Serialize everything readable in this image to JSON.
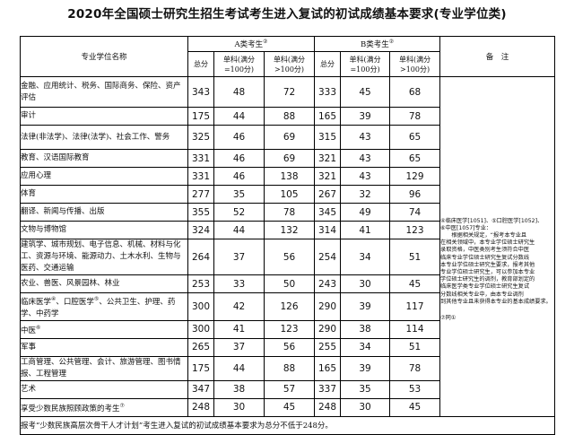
{
  "title": "2020年全国硕士研究生招生考试考生进入复试的初试成绩基本要求(专业学位类)",
  "headers": {
    "major": "专业学位名称",
    "group_a": "A类考生",
    "group_a_note": "②",
    "group_b": "B类考生",
    "group_b_note": "②",
    "total": "总分",
    "single1_line1": "单科(满分",
    "single1_line2": "=100分)",
    "single2_line1": "单科(满分",
    "single2_line2": ">100分)",
    "notes": "备　注"
  },
  "rows": [
    {
      "name": "金融、应用统计、税务、国际商务、保险、资产评估",
      "a_total": "343",
      "a_s1": "48",
      "a_s2": "72",
      "b_total": "333",
      "b_s1": "45",
      "b_s2": "68"
    },
    {
      "name": "审计",
      "a_total": "175",
      "a_s1": "44",
      "a_s2": "88",
      "b_total": "165",
      "b_s1": "39",
      "b_s2": "78"
    },
    {
      "name": "法律(非法学)、法律(法学)、社会工作、警务",
      "a_total": "325",
      "a_s1": "46",
      "a_s2": "69",
      "b_total": "315",
      "b_s1": "43",
      "b_s2": "65"
    },
    {
      "name": "教育、汉语国际教育",
      "a_total": "331",
      "a_s1": "46",
      "a_s2": "69",
      "b_total": "321",
      "b_s1": "43",
      "b_s2": "65"
    },
    {
      "name": "应用心理",
      "a_total": "331",
      "a_s1": "46",
      "a_s2": "138",
      "b_total": "321",
      "b_s1": "43",
      "b_s2": "129"
    },
    {
      "name": "体育",
      "a_total": "277",
      "a_s1": "35",
      "a_s2": "105",
      "b_total": "267",
      "b_s1": "32",
      "b_s2": "96"
    },
    {
      "name": "翻译、新闻与传播、出版",
      "a_total": "355",
      "a_s1": "52",
      "a_s2": "78",
      "b_total": "345",
      "b_s1": "49",
      "b_s2": "74"
    },
    {
      "name": "文物与博物馆",
      "a_total": "324",
      "a_s1": "44",
      "a_s2": "132",
      "b_total": "314",
      "b_s1": "41",
      "b_s2": "123"
    },
    {
      "name": "建筑学、城市规划、电子信息、机械、材料与化工、资源与环境、能源动力、土木水利、生物与医药、交通运输",
      "a_total": "264",
      "a_s1": "37",
      "a_s2": "56",
      "b_total": "254",
      "b_s1": "34",
      "b_s2": "51"
    },
    {
      "name": "农业、兽医、风景园林、林业",
      "a_total": "253",
      "a_s1": "33",
      "a_s2": "50",
      "b_total": "243",
      "b_s1": "30",
      "b_s2": "45"
    },
    {
      "name": "临床医学",
      "name_note": "④",
      "name_mid": "、口腔医学",
      "name_note2": "⑤",
      "name_tail": "、公共卫生、护理、药学、中药学",
      "a_total": "300",
      "a_s1": "42",
      "a_s2": "126",
      "b_total": "290",
      "b_s1": "39",
      "b_s2": "117"
    },
    {
      "name": "中医",
      "name_note": "⑥",
      "a_total": "300",
      "a_s1": "41",
      "a_s2": "123",
      "b_total": "290",
      "b_s1": "38",
      "b_s2": "114"
    },
    {
      "name": "军事",
      "a_total": "265",
      "a_s1": "37",
      "a_s2": "56",
      "b_total": "255",
      "b_s1": "34",
      "b_s2": "51"
    },
    {
      "name": "工商管理、公共管理、会计、旅游管理、图书情报、工程管理",
      "a_total": "175",
      "a_s1": "44",
      "a_s2": "88",
      "b_total": "165",
      "b_s1": "39",
      "b_s2": "78"
    },
    {
      "name": "艺术",
      "a_total": "347",
      "a_s1": "38",
      "a_s2": "57",
      "b_total": "337",
      "b_s1": "35",
      "b_s2": "53"
    },
    {
      "name": "享受少数民族照顾政策的考生",
      "name_note": "⑦",
      "a_total": "248",
      "a_s1": "30",
      "a_s2": "45",
      "b_total": "248",
      "b_s1": "30",
      "b_s2": "45"
    }
  ],
  "notes": {
    "line1": "④临床医学[1051]、⑤口腔医学[1052]、",
    "line2": "⑥中医[1057]专业：",
    "line3": "　　根据相关规定，“报考本专业且",
    "line4": "在相关领域中，本专业学位硕士研究生",
    "line5": "录取资格，中医类别考生须符合中医",
    "line6": "临床专业学位硕士研究生复试分数线",
    "line7": "本专业学位硕士研究生要求，报考其他",
    "line8": "专业学位硕士研究生，可以参加本专业",
    "line9": "学位硕士研究生的调剂，教育部划定的",
    "line10": "临床医学类专业学位硕士研究生复试",
    "line11": "分数线相关专业中，由本专业调剂",
    "line12": "到其他专业且未获得本专业的基本成绩要求。",
    "line13": "⑦同①"
  },
  "footer": "报考“少数民族高层次骨干人才计划”考生进入复试的初试成绩基本要求为总分不低于248分。"
}
